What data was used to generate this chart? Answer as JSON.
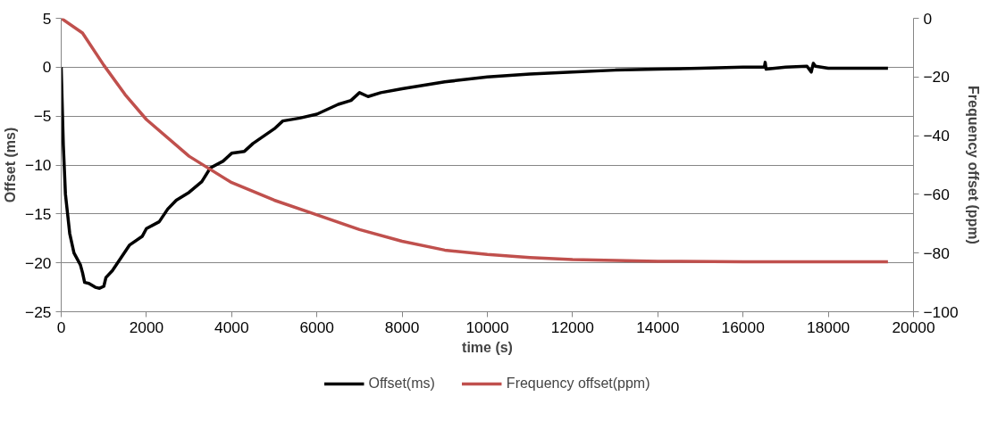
{
  "chart_data": {
    "type": "line",
    "xlabel": "time (s)",
    "ylabel": "Offset (ms)",
    "y2label": "Frequency offset (ppm)",
    "xlim": [
      0,
      20000
    ],
    "xticks": [
      0,
      2000,
      4000,
      6000,
      8000,
      10000,
      12000,
      14000,
      16000,
      18000,
      20000
    ],
    "ylim": [
      -25,
      5
    ],
    "yticks": [
      -25,
      -20,
      -15,
      -10,
      -5,
      0,
      5
    ],
    "y2lim": [
      -100,
      0
    ],
    "y2ticks": [
      -100,
      -80,
      -60,
      -40,
      -20,
      0
    ],
    "grid": "y",
    "legend": "bottom",
    "marker": "none",
    "line_style": "solid",
    "series": [
      {
        "name": "Offset(ms)",
        "color": "#000000",
        "x": [
          0,
          50,
          100,
          200,
          300,
          450,
          500,
          550,
          650,
          800,
          900,
          1000,
          1050,
          1200,
          1400,
          1600,
          1900,
          2000,
          2300,
          2500,
          2700,
          3000,
          3300,
          3500,
          3800,
          4000,
          4300,
          4500,
          5000,
          5200,
          5600,
          6000,
          6500,
          6800,
          7000,
          7200,
          7500,
          8000,
          9000,
          10000,
          11000,
          12000,
          13000,
          14000,
          15000,
          16000,
          16500,
          16520,
          16540,
          17000,
          17500,
          17600,
          17650,
          17700,
          18000,
          19400
        ],
        "values": [
          0,
          -8,
          -13,
          -17,
          -19,
          -20.2,
          -21,
          -22,
          -22.1,
          -22.5,
          -22.6,
          -22.4,
          -21.5,
          -20.8,
          -19.5,
          -18.2,
          -17.3,
          -16.5,
          -15.8,
          -14.5,
          -13.6,
          -12.8,
          -11.7,
          -10.3,
          -9.6,
          -8.8,
          -8.6,
          -7.8,
          -6.3,
          -5.5,
          -5.2,
          -4.8,
          -3.8,
          -3.4,
          -2.6,
          -3,
          -2.6,
          -2.2,
          -1.5,
          -1,
          -0.7,
          -0.5,
          -0.3,
          -0.2,
          -0.1,
          0,
          0,
          0.5,
          -0.2,
          0,
          0.1,
          -0.5,
          0.4,
          0.1,
          -0.1,
          -0.1
        ]
      },
      {
        "name": "Frequency offset(ppm)",
        "color": "#c0504d",
        "axis": "y2",
        "x": [
          0,
          500,
          1000,
          1500,
          2000,
          3000,
          4000,
          5000,
          6000,
          7000,
          8000,
          9000,
          10000,
          11000,
          12000,
          14000,
          16000,
          19400
        ],
        "values": [
          0,
          -5,
          -16,
          -26,
          -34.5,
          -47,
          -56,
          -62,
          -67,
          -72,
          -76,
          -79,
          -80.5,
          -81.5,
          -82.2,
          -82.8,
          -83,
          -83
        ]
      }
    ]
  }
}
